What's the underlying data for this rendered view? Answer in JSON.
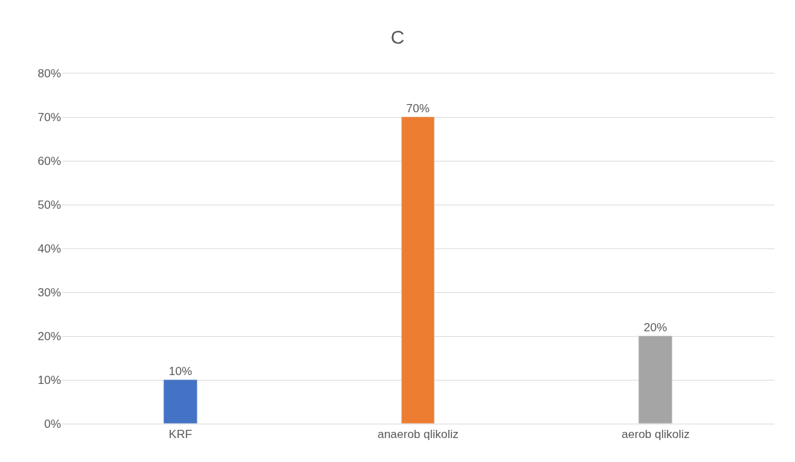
{
  "chart_data": {
    "type": "bar",
    "title": "C",
    "categories": [
      "KRF",
      "anaerob qlikoliz",
      "aerob qlikoliz"
    ],
    "values": [
      10,
      70,
      20
    ],
    "colors": [
      "#4472c4",
      "#ed7d31",
      "#a5a5a5"
    ],
    "value_labels": [
      "10%",
      "70%",
      "20%"
    ],
    "ylim": [
      0,
      80
    ],
    "yticks": [
      {
        "value": 0,
        "label": "0%"
      },
      {
        "value": 10,
        "label": "10%"
      },
      {
        "value": 20,
        "label": "20%"
      },
      {
        "value": 30,
        "label": "30%"
      },
      {
        "value": 40,
        "label": "40%"
      },
      {
        "value": 50,
        "label": "50%"
      },
      {
        "value": 60,
        "label": "60%"
      },
      {
        "value": 70,
        "label": "70%"
      },
      {
        "value": 80,
        "label": "80%"
      }
    ],
    "grid": "y"
  }
}
